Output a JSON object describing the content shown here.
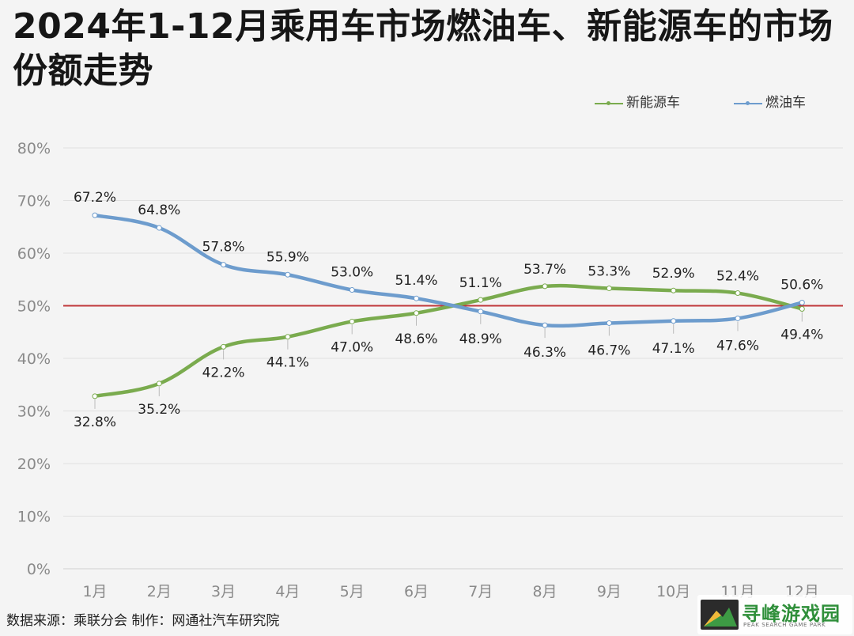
{
  "title": "2024年1-12月乘用车市场燃油车、新能源车的市场份额走势",
  "footer": "数据来源：乘联分会  制作：网通社汽车研究院",
  "watermark": {
    "title": "寻峰游戏园",
    "subtitle": "PEAK SEARCH GAME PARK"
  },
  "chart_data": {
    "type": "line",
    "title": "2024年1-12月乘用车市场燃油车、新能源车的市场份额走势",
    "xlabel": "",
    "ylabel": "",
    "categories": [
      "1月",
      "2月",
      "3月",
      "4月",
      "5月",
      "6月",
      "7月",
      "8月",
      "9月",
      "10月",
      "11月",
      "12月"
    ],
    "y_ticks": [
      "0%",
      "10%",
      "20%",
      "30%",
      "40%",
      "50%",
      "60%",
      "70%",
      "80%"
    ],
    "ylim": [
      0,
      80
    ],
    "reference_line": 50,
    "grid": true,
    "legend_position": "top-right",
    "series": [
      {
        "name": "新能源车",
        "color": "#7aab4e",
        "values": [
          32.8,
          35.2,
          42.2,
          44.1,
          47.0,
          48.6,
          51.1,
          53.7,
          53.3,
          52.9,
          52.4,
          49.4
        ],
        "labels": [
          "32.8%",
          "35.2%",
          "42.2%",
          "44.1%",
          "47.0%",
          "48.6%",
          "51.1%",
          "53.7%",
          "53.3%",
          "52.9%",
          "52.4%",
          "49.4%"
        ]
      },
      {
        "name": "燃油车",
        "color": "#6d9ccd",
        "values": [
          67.2,
          64.8,
          57.8,
          55.9,
          53.0,
          51.4,
          48.9,
          46.3,
          46.7,
          47.1,
          47.6,
          50.6
        ],
        "labels": [
          "67.2%",
          "64.8%",
          "57.8%",
          "55.9%",
          "53.0%",
          "51.4%",
          "48.9%",
          "46.3%",
          "46.7%",
          "47.1%",
          "47.6%",
          "50.6%"
        ]
      }
    ],
    "reference_color": "#c0393b"
  }
}
